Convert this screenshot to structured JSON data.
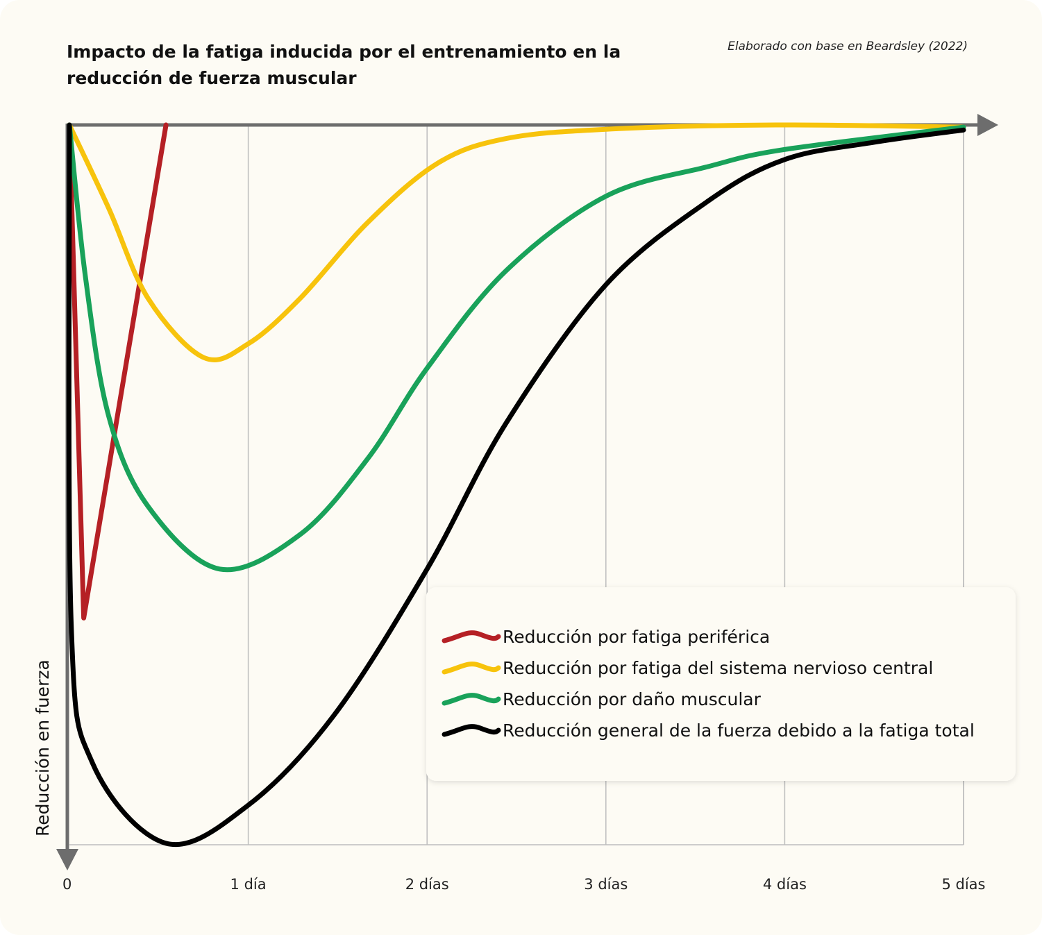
{
  "chart_data": {
    "type": "line",
    "title": "Impacto de la fatiga inducida por el entrenamiento en la reducción de fuerza muscular",
    "source": "Elaborado con base en Beardsley (2022)",
    "y_label": "Reducción en fuerza",
    "xlim": [
      0,
      5
    ],
    "xticks": [
      0,
      {
        "value": 1,
        "label": "1 día"
      },
      {
        "value": 2,
        "label": "2 días"
      },
      {
        "value": 3,
        "label": "3 días"
      },
      {
        "value": 4,
        "label": "4 días"
      },
      {
        "value": 5,
        "label": "5 días"
      }
    ],
    "ylim": [
      0,
      100
    ],
    "y_inverted": true,
    "grid": true,
    "legend": "lower-right",
    "series": [
      {
        "name": "Reducción por fatiga periférica",
        "color": "#b52025",
        "smooth": false,
        "x": [
          0,
          0.08,
          0.54
        ],
        "values": [
          0,
          68.5,
          0
        ]
      },
      {
        "name": "Reducción por fatiga del sistema nervioso central",
        "color": "#f7c30c",
        "smooth": true,
        "x": [
          0,
          0.22,
          0.44,
          0.75,
          1,
          1.29,
          1.67,
          2.06,
          2.44,
          3,
          3.95,
          5
        ],
        "values": [
          0,
          11.6,
          24.1,
          32.3,
          30.4,
          24.1,
          13.5,
          5.3,
          1.9,
          0.6,
          0,
          0.3
        ]
      },
      {
        "name": "Reducción por daño muscular",
        "color": "#19a25a",
        "smooth": true,
        "x": [
          0,
          0.09,
          0.22,
          0.44,
          0.84,
          1.29,
          1.67,
          2,
          2.44,
          3,
          3.57,
          4,
          5
        ],
        "values": [
          0,
          21.2,
          40.5,
          53,
          61.7,
          56.9,
          46.3,
          33.8,
          20.3,
          9.9,
          5.8,
          3.4,
          0.3
        ]
      },
      {
        "name": "Reducción general de la fuerza debido a la fatiga total",
        "color": "#000000",
        "smooth": true,
        "x": [
          0,
          0.01,
          0.13,
          0.54,
          1,
          1.48,
          2,
          2.44,
          3,
          3.57,
          4,
          4.5,
          5
        ],
        "values": [
          0,
          69.4,
          88.7,
          99.8,
          94.5,
          82,
          61.7,
          41.5,
          22.2,
          10.6,
          4.8,
          2.4,
          0.7
        ]
      }
    ]
  }
}
